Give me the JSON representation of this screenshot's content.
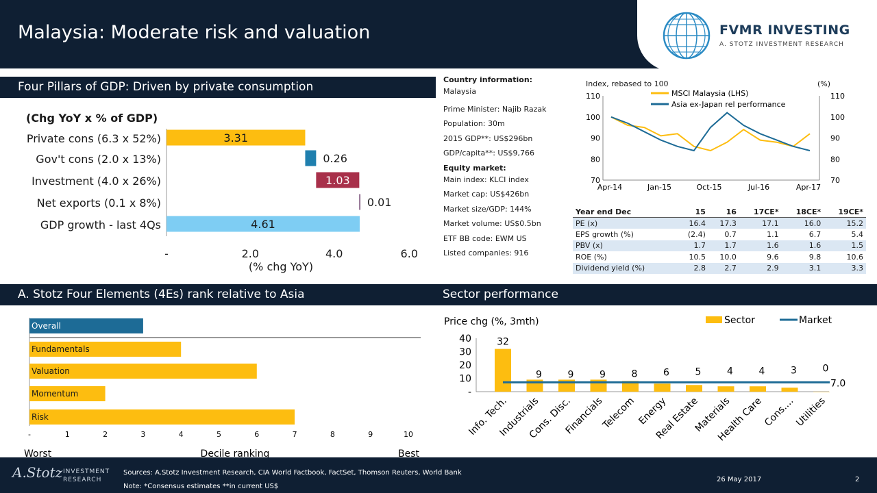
{
  "header": {
    "title": "Malaysia: Moderate risk and valuation",
    "brand": "FVMR INVESTING",
    "brand_sub": "A. STOTZ INVESTMENT RESEARCH"
  },
  "gdp": {
    "section_title": "Four Pillars of GDP: Driven by private consumption",
    "subtitle": "(Chg YoY x % of GDP)",
    "xlabel": "(% chg YoY)",
    "ticks": [
      "-",
      "2.0",
      "4.0",
      "6.0"
    ],
    "chart_data": {
      "type": "bar",
      "orientation": "horizontal",
      "style": "waterfall",
      "categories": [
        "Private cons (6.3 x 52%)",
        "Gov't cons (2.0 x 13%)",
        "Investment (4.0 x 26%)",
        "Net exports (0.1 x 8%)",
        "GDP growth - last 4Qs"
      ],
      "values": [
        3.31,
        0.26,
        1.03,
        0.01,
        4.61
      ],
      "labels": [
        "3.31",
        "0.26",
        "1.03",
        "0.01",
        "4.61"
      ],
      "colors": [
        "#fdbd10",
        "#1f7fae",
        "#a8304a",
        "#6b3e6b",
        "#7ecdf3"
      ],
      "xlim": [
        0,
        6
      ]
    }
  },
  "country_info": {
    "heading": "Country information:",
    "lines": [
      "Malaysia",
      "Prime Minister: Najib Razak",
      "Population: 30m",
      "2015 GDP**: US$296bn",
      "GDP/capita**: US$9,766"
    ],
    "equity_heading": "Equity market:",
    "equity_lines": [
      "Main index: KLCI index",
      "Market cap: US$426bn",
      "Market size/GDP: 144%",
      "Market volume: US$0.5bn",
      "ETF BB code: EWM US",
      "Listed companies: 916"
    ]
  },
  "index_chart": {
    "left_title": "Index, rebased to 100",
    "right_title": "(%)",
    "left_ticks": [
      "110",
      "100",
      "90",
      "80",
      "70"
    ],
    "right_ticks": [
      "110",
      "100",
      "90",
      "80",
      "70"
    ],
    "x_ticks": [
      "Apr-14",
      "Jan-15",
      "Oct-15",
      "Jul-16",
      "Apr-17"
    ],
    "chart_data": {
      "type": "line",
      "x": [
        "Apr-14",
        "Jul-14",
        "Oct-14",
        "Jan-15",
        "Apr-15",
        "Jul-15",
        "Oct-15",
        "Jan-16",
        "Apr-16",
        "Jul-16",
        "Oct-16",
        "Jan-17",
        "Apr-17"
      ],
      "ylim": [
        70,
        110
      ],
      "series": [
        {
          "name": "MSCI Malaysia (LHS)",
          "color": "#fdbd10",
          "values": [
            100,
            96,
            95,
            91,
            92,
            86,
            84,
            88,
            94,
            89,
            88,
            86,
            92
          ]
        },
        {
          "name": "Asia ex-Japan rel performance",
          "color": "#1d6b96",
          "values": [
            100,
            97,
            93,
            89,
            86,
            84,
            95,
            102,
            96,
            92,
            89,
            86,
            84
          ]
        }
      ]
    }
  },
  "valuation_table": {
    "headers": [
      "Year end Dec",
      "15",
      "16",
      "17CE*",
      "18CE*",
      "19CE*"
    ],
    "rows": [
      [
        "PE (x)",
        "16.4",
        "17.3",
        "17.1",
        "16.0",
        "15.2"
      ],
      [
        "EPS growth (%)",
        "(2.4)",
        "0.7",
        "1.1",
        "6.7",
        "5.4"
      ],
      [
        "PBV (x)",
        "1.7",
        "1.7",
        "1.6",
        "1.6",
        "1.5"
      ],
      [
        "ROE (%)",
        "10.5",
        "10.0",
        "9.6",
        "9.8",
        "10.6"
      ],
      [
        "Dividend yield (%)",
        "2.8",
        "2.7",
        "2.9",
        "3.1",
        "3.3"
      ]
    ]
  },
  "four_e": {
    "section_title": "A. Stotz Four Elements (4Es) rank relative to Asia",
    "ticks": [
      "-",
      "1",
      "2",
      "3",
      "4",
      "5",
      "6",
      "7",
      "8",
      "9",
      "10"
    ],
    "worst": "Worst",
    "xlabel": "Decile ranking",
    "best": "Best",
    "chart_data": {
      "type": "bar",
      "orientation": "horizontal",
      "categories": [
        "Overall",
        "Fundamentals",
        "Valuation",
        "Momentum",
        "Risk"
      ],
      "values": [
        3,
        4,
        6,
        2,
        7
      ],
      "colors": [
        "#1d6b96",
        "#fdbd10",
        "#fdbd10",
        "#fdbd10",
        "#fdbd10"
      ],
      "xlim": [
        0,
        10
      ]
    }
  },
  "sector": {
    "section_title": "Sector performance",
    "ylabel": "Price chg (%, 3mth)",
    "y_ticks": [
      "40",
      "30",
      "20",
      "10",
      "-"
    ],
    "legend_sector": "Sector",
    "legend_market": "Market",
    "market_label": "7.0",
    "chart_data": {
      "type": "bar",
      "categories": [
        "Info. Tech.",
        "Industrials",
        "Cons. Disc.",
        "Financials",
        "Telecom",
        "Energy",
        "Real Estate",
        "Materials",
        "Health Care",
        "Cons....",
        "Utilities"
      ],
      "values": [
        32,
        9,
        9,
        9,
        8,
        6,
        5,
        4,
        4,
        3,
        0
      ],
      "labels": [
        "32",
        "9",
        "9",
        "9",
        "8",
        "6",
        "5",
        "4",
        "4",
        "3",
        "0"
      ],
      "market": 7.0,
      "ylim": [
        0,
        40
      ],
      "colors": {
        "sector": "#fdbd10",
        "market": "#1d6b96"
      }
    }
  },
  "footer": {
    "logo_text": "A.Stotz",
    "logo_sub1": "INVESTMENT",
    "logo_sub2": "RESEARCH",
    "sources": "Sources: A.Stotz Investment Research, CIA World Factbook, FactSet, Thomson Reuters, World Bank",
    "note": "Note: *Consensus estimates **in current US$",
    "date": "26 May 2017",
    "page": "2"
  }
}
